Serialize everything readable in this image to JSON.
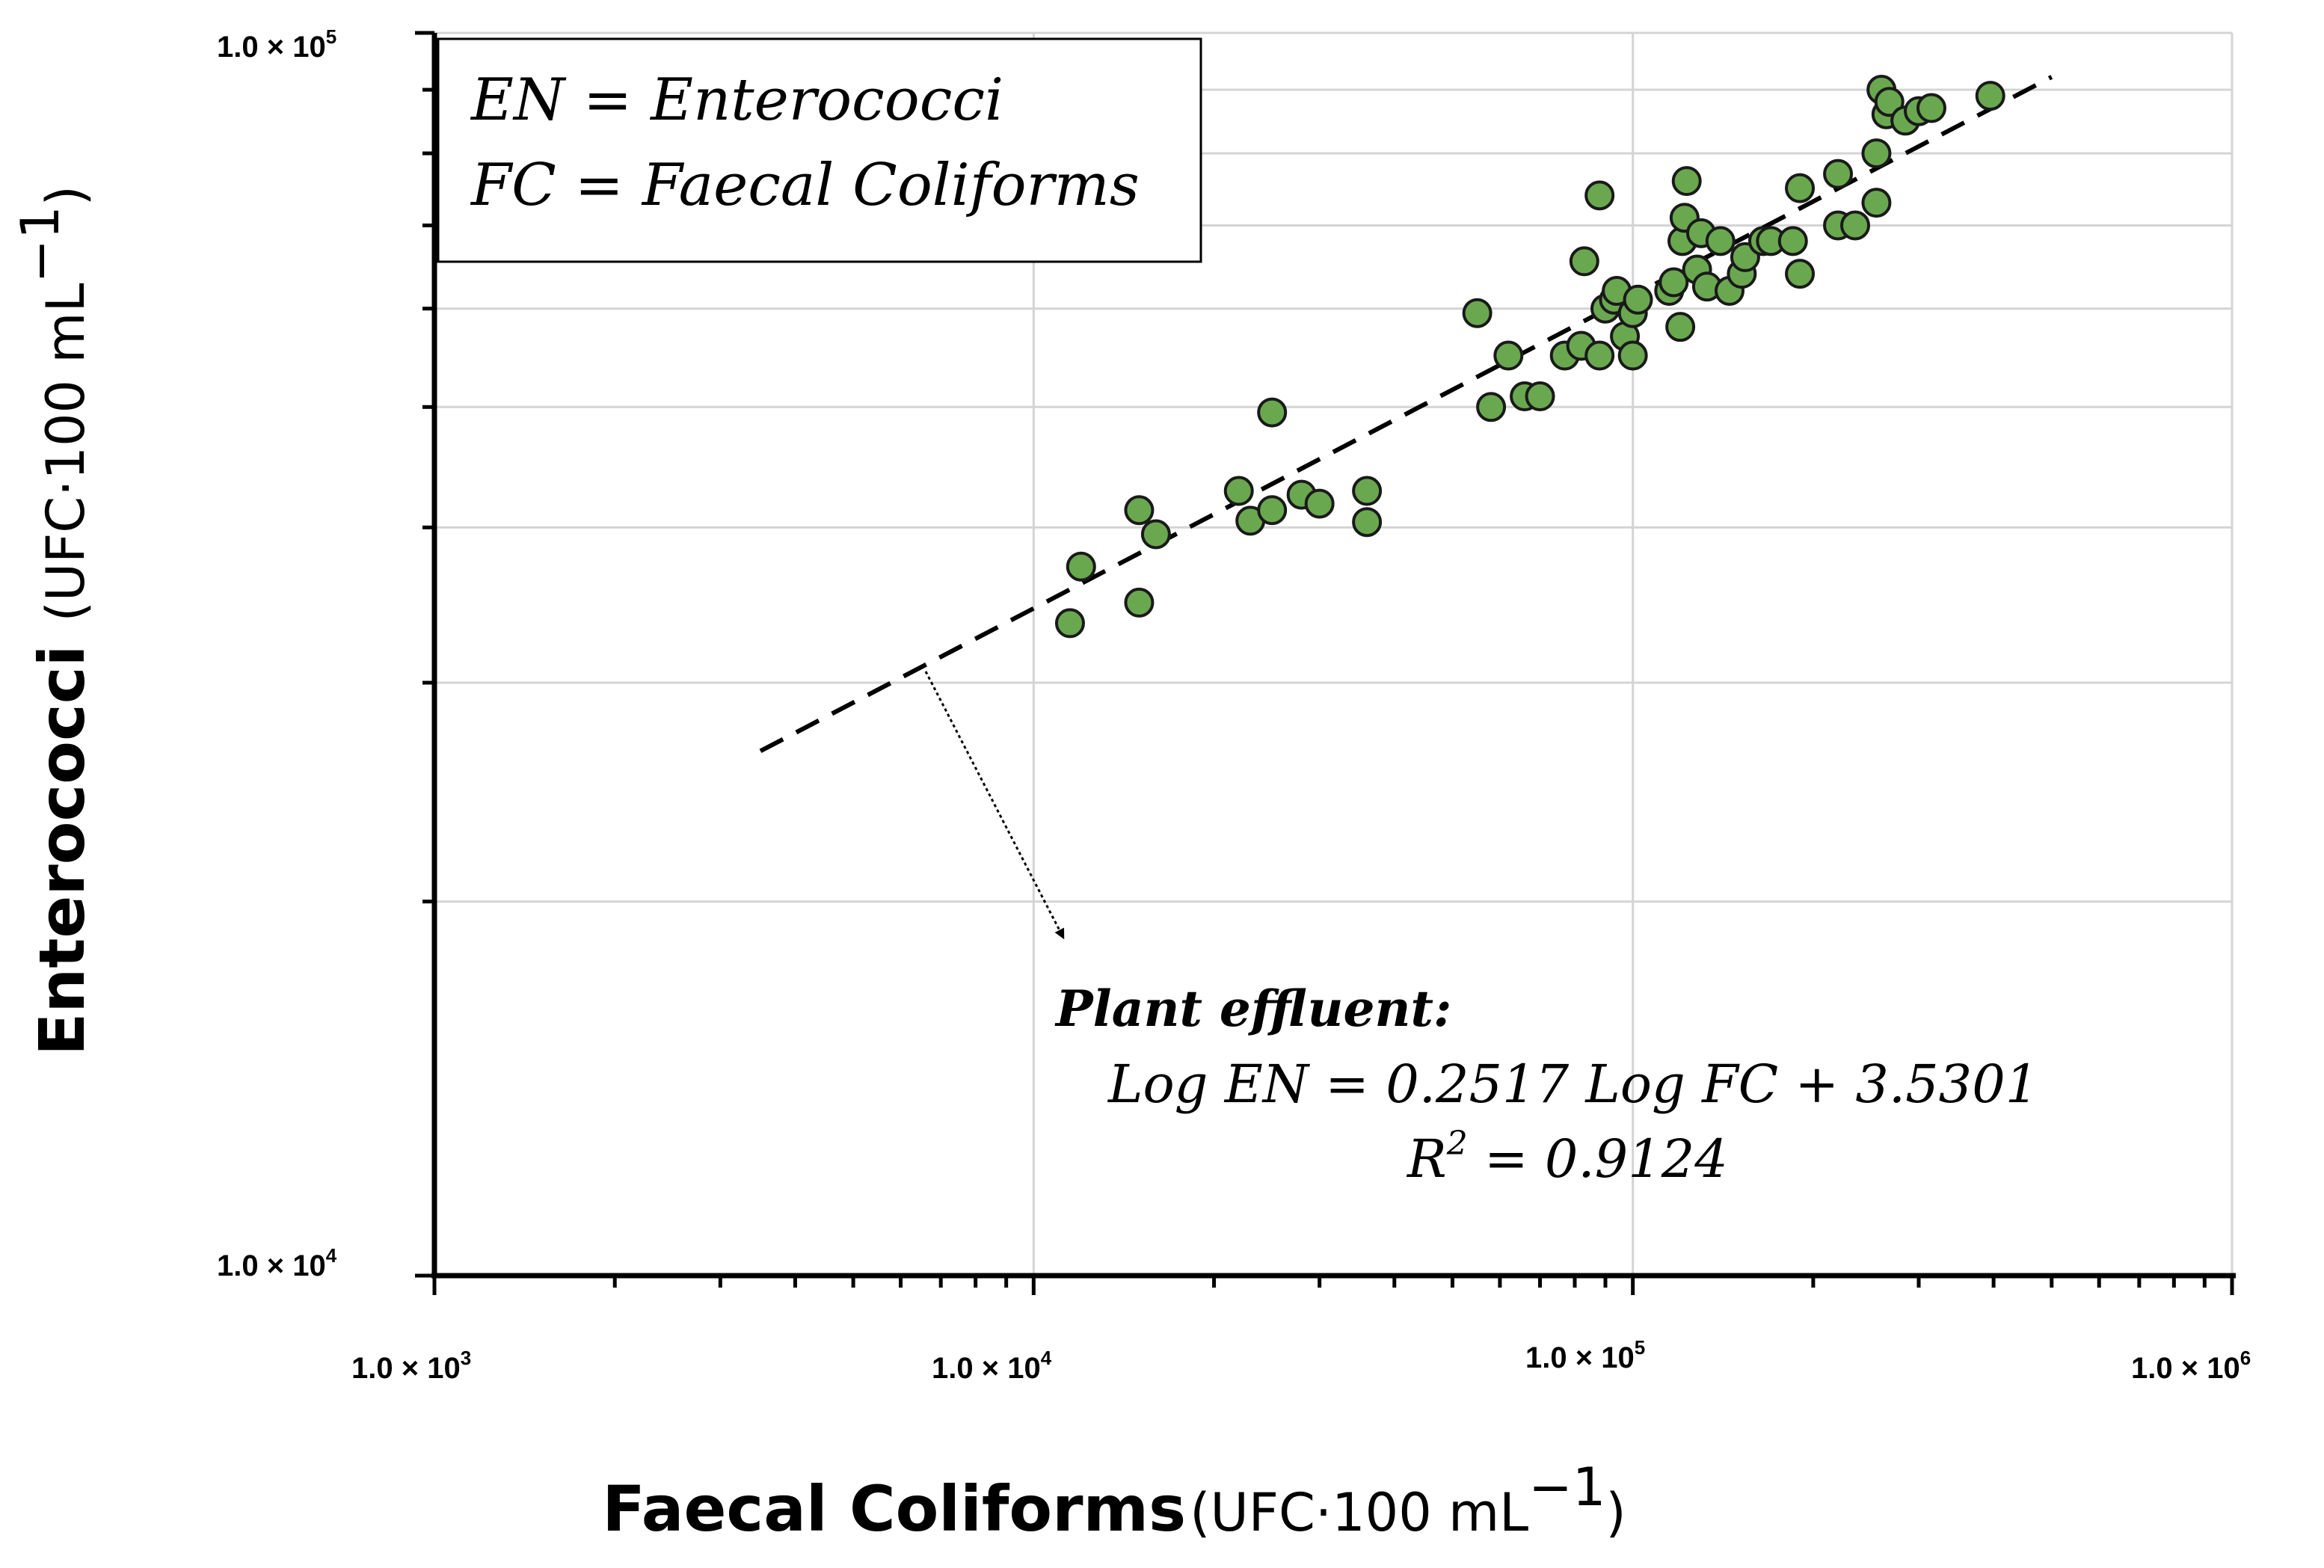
{
  "chart_data": {
    "type": "scatter",
    "scale": "log-log",
    "xlabel_bold": "Faecal Coliforms",
    "xlabel_unit": "(UFC·100 mL",
    "ylabel_bold": "Enterococci",
    "ylabel_unit": "(UFC·100 mL",
    "unit_exponent": "−1",
    "unit_close": ")",
    "xlim": [
      1000,
      1000000
    ],
    "ylim": [
      10000,
      100000
    ],
    "x_ticks": [
      {
        "value": 1000,
        "mantissa": "1.0 × 10",
        "exp": "3"
      },
      {
        "value": 10000,
        "mantissa": "1.0 × 10",
        "exp": "4"
      },
      {
        "value": 100000,
        "mantissa": "1.0 × 10",
        "exp": "5"
      },
      {
        "value": 1000000,
        "mantissa": "1.0 × 10",
        "exp": "6"
      }
    ],
    "y_ticks": [
      {
        "value": 10000,
        "mantissa": "1.0 × 10",
        "exp": "4"
      },
      {
        "value": 100000,
        "mantissa": "1.0 × 10",
        "exp": "5"
      }
    ],
    "y_grid": [
      20000,
      30000,
      40000,
      50000,
      60000,
      70000,
      80000,
      90000
    ],
    "x_grid": [
      10000,
      100000
    ],
    "legend_lines": [
      "EN = Enterococci",
      "FC = Faecal Coliforms"
    ],
    "annotation": {
      "title": "Plant effluent:",
      "equation": "Log EN = 0.2517 Log FC + 3.5301",
      "r2_label": "R",
      "r2_exp": "2",
      "r2_value": " = 0.9124"
    },
    "fit": {
      "slope": 0.2517,
      "intercept": 3.5301,
      "x_start": 3500,
      "x_end": 500000
    },
    "point_color": "#6aa84f",
    "series": [
      {
        "name": "Plant effluent",
        "x": [
          11500,
          12000,
          15000,
          15000,
          16000,
          22000,
          23000,
          25000,
          25000,
          28000,
          30000,
          36000,
          36000,
          55000,
          58000,
          62000,
          66000,
          70000,
          77000,
          82000,
          83000,
          88000,
          88000,
          90000,
          93000,
          94000,
          97000,
          100000,
          100000,
          102000,
          115000,
          117000,
          120000,
          121000,
          122000,
          123000,
          128000,
          130000,
          133000,
          140000,
          145000,
          152000,
          154000,
          165000,
          170000,
          185000,
          190000,
          190000,
          220000,
          220000,
          235000,
          255000,
          255000,
          260000,
          265000,
          268000,
          285000,
          300000,
          315000,
          395000
        ],
        "y": [
          33500,
          37200,
          34800,
          41300,
          39500,
          42800,
          40500,
          41300,
          49500,
          42500,
          41800,
          42800,
          40400,
          59500,
          50000,
          55000,
          51000,
          51000,
          55000,
          56000,
          65500,
          55000,
          74000,
          60000,
          61000,
          62000,
          57000,
          55000,
          59500,
          61000,
          62000,
          63000,
          58000,
          68000,
          71000,
          76000,
          64500,
          69000,
          62500,
          68000,
          62000,
          64000,
          66000,
          68000,
          68000,
          68000,
          64000,
          75000,
          70000,
          77000,
          70000,
          80000,
          73000,
          90000,
          86000,
          88000,
          85000,
          86500,
          87000,
          89000
        ]
      }
    ]
  }
}
